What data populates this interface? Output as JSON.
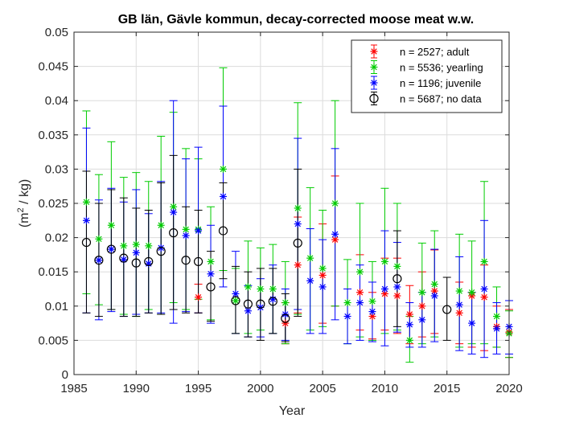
{
  "chart_data": {
    "type": "scatter",
    "title": "GB län, Gävle kommun, decay-corrected moose meat w.w.",
    "xlabel": "Year",
    "ylabel_main": "(m",
    "ylabel_sup": "2",
    "ylabel_rest": " / kg)",
    "xlim": [
      1985,
      2020
    ],
    "ylim": [
      0,
      0.05
    ],
    "xticks": [
      1985,
      1990,
      1995,
      2000,
      2005,
      2010,
      2015,
      2020
    ],
    "xtick_labels": [
      "1985",
      "1990",
      "1995",
      "2000",
      "2005",
      "2010",
      "2015",
      "2020"
    ],
    "yticks": [
      0,
      0.005,
      0.01,
      0.015,
      0.02,
      0.025,
      0.03,
      0.035,
      0.04,
      0.045,
      0.05
    ],
    "ytick_labels": [
      "0",
      "0.005",
      "0.01",
      "0.015",
      "0.02",
      "0.025",
      "0.03",
      "0.035",
      "0.04",
      "0.045",
      "0.05"
    ],
    "grid": true,
    "legend_position": "top-right",
    "series": [
      {
        "name": "n = 2527; adult",
        "color": "#ff0000",
        "marker": "star",
        "points": [
          {
            "x": 1995,
            "y": 0.0113,
            "lo": 0.009,
            "hi": 0.0132
          },
          {
            "x": 2002,
            "y": 0.0075,
            "lo": 0.0045,
            "hi": 0.0105
          },
          {
            "x": 2003,
            "y": 0.016,
            "lo": 0.009,
            "hi": 0.023
          },
          {
            "x": 2005,
            "y": 0.0145,
            "lo": 0.0075,
            "hi": 0.022
          },
          {
            "x": 2006,
            "y": 0.0197,
            "lo": 0.01,
            "hi": 0.029
          },
          {
            "x": 2008,
            "y": 0.012,
            "lo": 0.0065,
            "hi": 0.0175
          },
          {
            "x": 2009,
            "y": 0.0085,
            "lo": 0.0052,
            "hi": 0.012
          },
          {
            "x": 2010,
            "y": 0.0118,
            "lo": 0.0065,
            "hi": 0.017
          },
          {
            "x": 2011,
            "y": 0.0115,
            "lo": 0.006,
            "hi": 0.017
          },
          {
            "x": 2012,
            "y": 0.0088,
            "lo": 0.0045,
            "hi": 0.013
          },
          {
            "x": 2013,
            "y": 0.01,
            "lo": 0.0055,
            "hi": 0.015
          },
          {
            "x": 2014,
            "y": 0.0122,
            "lo": 0.006,
            "hi": 0.0182
          },
          {
            "x": 2016,
            "y": 0.009,
            "lo": 0.0045,
            "hi": 0.0135
          },
          {
            "x": 2017,
            "y": 0.0115,
            "lo": 0.004,
            "hi": 0.012
          },
          {
            "x": 2018,
            "y": 0.0113,
            "lo": 0.0035,
            "hi": 0.016
          },
          {
            "x": 2019,
            "y": 0.007,
            "lo": 0.004,
            "hi": 0.01
          },
          {
            "x": 2020,
            "y": 0.0062,
            "lo": 0.0025,
            "hi": 0.0095
          }
        ]
      },
      {
        "name": "n = 5536; yearling",
        "color": "#00cc00",
        "marker": "star",
        "points": [
          {
            "x": 1986,
            "y": 0.0252,
            "lo": 0.0118,
            "hi": 0.0385
          },
          {
            "x": 1987,
            "y": 0.0198,
            "lo": 0.0102,
            "hi": 0.0292
          },
          {
            "x": 1988,
            "y": 0.0218,
            "lo": 0.0095,
            "hi": 0.034
          },
          {
            "x": 1989,
            "y": 0.0188,
            "lo": 0.0088,
            "hi": 0.0288
          },
          {
            "x": 1990,
            "y": 0.019,
            "lo": 0.0085,
            "hi": 0.0295
          },
          {
            "x": 1991,
            "y": 0.0188,
            "lo": 0.0095,
            "hi": 0.0282
          },
          {
            "x": 1992,
            "y": 0.0218,
            "lo": 0.0088,
            "hi": 0.0348
          },
          {
            "x": 1993,
            "y": 0.0245,
            "lo": 0.0105,
            "hi": 0.0383
          },
          {
            "x": 1994,
            "y": 0.0212,
            "lo": 0.0095,
            "hi": 0.033
          },
          {
            "x": 1995,
            "y": 0.0212,
            "lo": 0.011,
            "hi": 0.0315
          },
          {
            "x": 1996,
            "y": 0.0165,
            "lo": 0.008,
            "hi": 0.0245
          },
          {
            "x": 1997,
            "y": 0.03,
            "lo": 0.0152,
            "hi": 0.0448
          },
          {
            "x": 1998,
            "y": 0.0108,
            "lo": 0.006,
            "hi": 0.0155
          },
          {
            "x": 1999,
            "y": 0.0128,
            "lo": 0.006,
            "hi": 0.0195
          },
          {
            "x": 2000,
            "y": 0.0125,
            "lo": 0.0065,
            "hi": 0.0185
          },
          {
            "x": 2001,
            "y": 0.0125,
            "lo": 0.006,
            "hi": 0.019
          },
          {
            "x": 2002,
            "y": 0.0105,
            "lo": 0.0045,
            "hi": 0.0165
          },
          {
            "x": 2003,
            "y": 0.0243,
            "lo": 0.0088,
            "hi": 0.0397
          },
          {
            "x": 2004,
            "y": 0.017,
            "lo": 0.0065,
            "hi": 0.0273
          },
          {
            "x": 2005,
            "y": 0.0155,
            "lo": 0.007,
            "hi": 0.024
          },
          {
            "x": 2006,
            "y": 0.025,
            "lo": 0.01,
            "hi": 0.04
          },
          {
            "x": 2007,
            "y": 0.0105,
            "lo": 0.0045,
            "hi": 0.0168
          },
          {
            "x": 2008,
            "y": 0.015,
            "lo": 0.0055,
            "hi": 0.025
          },
          {
            "x": 2009,
            "y": 0.0107,
            "lo": 0.005,
            "hi": 0.0165
          },
          {
            "x": 2010,
            "y": 0.0165,
            "lo": 0.006,
            "hi": 0.0272
          },
          {
            "x": 2011,
            "y": 0.0158,
            "lo": 0.0065,
            "hi": 0.025
          },
          {
            "x": 2012,
            "y": 0.005,
            "lo": 0.0018,
            "hi": 0.0085
          },
          {
            "x": 2013,
            "y": 0.012,
            "lo": 0.0045,
            "hi": 0.0192
          },
          {
            "x": 2014,
            "y": 0.0132,
            "lo": 0.0055,
            "hi": 0.021
          },
          {
            "x": 2016,
            "y": 0.0122,
            "lo": 0.004,
            "hi": 0.0205
          },
          {
            "x": 2017,
            "y": 0.012,
            "lo": 0.0045,
            "hi": 0.0195
          },
          {
            "x": 2018,
            "y": 0.0165,
            "lo": 0.0045,
            "hi": 0.0282
          },
          {
            "x": 2019,
            "y": 0.0085,
            "lo": 0.004,
            "hi": 0.0128
          },
          {
            "x": 2020,
            "y": 0.006,
            "lo": 0.0025,
            "hi": 0.0093
          }
        ]
      },
      {
        "name": "n = 1196; juvenile",
        "color": "#0000ff",
        "marker": "star",
        "points": [
          {
            "x": 1986,
            "y": 0.0225,
            "lo": 0.009,
            "hi": 0.036
          },
          {
            "x": 1987,
            "y": 0.0167,
            "lo": 0.008,
            "hi": 0.0255
          },
          {
            "x": 1988,
            "y": 0.0183,
            "lo": 0.0092,
            "hi": 0.0272
          },
          {
            "x": 1989,
            "y": 0.0168,
            "lo": 0.0085,
            "hi": 0.0252
          },
          {
            "x": 1990,
            "y": 0.0178,
            "lo": 0.0088,
            "hi": 0.027
          },
          {
            "x": 1991,
            "y": 0.0162,
            "lo": 0.009,
            "hi": 0.0235
          },
          {
            "x": 1992,
            "y": 0.0185,
            "lo": 0.009,
            "hi": 0.0282
          },
          {
            "x": 1993,
            "y": 0.0237,
            "lo": 0.0075,
            "hi": 0.04
          },
          {
            "x": 1994,
            "y": 0.0203,
            "lo": 0.0092,
            "hi": 0.0315
          },
          {
            "x": 1995,
            "y": 0.021,
            "lo": 0.009,
            "hi": 0.0332
          },
          {
            "x": 1996,
            "y": 0.0147,
            "lo": 0.0075,
            "hi": 0.0218
          },
          {
            "x": 1997,
            "y": 0.026,
            "lo": 0.0128,
            "hi": 0.0392
          },
          {
            "x": 1998,
            "y": 0.0118,
            "lo": 0.006,
            "hi": 0.018
          },
          {
            "x": 1999,
            "y": 0.0093,
            "lo": 0.0055,
            "hi": 0.013
          },
          {
            "x": 2000,
            "y": 0.0098,
            "lo": 0.0055,
            "hi": 0.014
          },
          {
            "x": 2001,
            "y": 0.011,
            "lo": 0.006,
            "hi": 0.016
          },
          {
            "x": 2002,
            "y": 0.0088,
            "lo": 0.005,
            "hi": 0.0125
          },
          {
            "x": 2003,
            "y": 0.022,
            "lo": 0.0095,
            "hi": 0.0345
          },
          {
            "x": 2004,
            "y": 0.0137,
            "lo": 0.006,
            "hi": 0.0213
          },
          {
            "x": 2005,
            "y": 0.0128,
            "lo": 0.006,
            "hi": 0.0197
          },
          {
            "x": 2006,
            "y": 0.0205,
            "lo": 0.008,
            "hi": 0.033
          },
          {
            "x": 2007,
            "y": 0.0085,
            "lo": 0.0045,
            "hi": 0.0125
          },
          {
            "x": 2008,
            "y": 0.0105,
            "lo": 0.005,
            "hi": 0.016
          },
          {
            "x": 2009,
            "y": 0.0092,
            "lo": 0.0048,
            "hi": 0.0135
          },
          {
            "x": 2010,
            "y": 0.0125,
            "lo": 0.0042,
            "hi": 0.021
          },
          {
            "x": 2011,
            "y": 0.0128,
            "lo": 0.0062,
            "hi": 0.0193
          },
          {
            "x": 2012,
            "y": 0.0073,
            "lo": 0.004,
            "hi": 0.0105
          },
          {
            "x": 2013,
            "y": 0.008,
            "lo": 0.004,
            "hi": 0.012
          },
          {
            "x": 2014,
            "y": 0.0115,
            "lo": 0.0048,
            "hi": 0.0183
          },
          {
            "x": 2016,
            "y": 0.0102,
            "lo": 0.0035,
            "hi": 0.0172
          },
          {
            "x": 2017,
            "y": 0.0075,
            "lo": 0.003,
            "hi": 0.012
          },
          {
            "x": 2018,
            "y": 0.0125,
            "lo": 0.0025,
            "hi": 0.0225
          },
          {
            "x": 2019,
            "y": 0.0067,
            "lo": 0.003,
            "hi": 0.0105
          },
          {
            "x": 2020,
            "y": 0.007,
            "lo": 0.003,
            "hi": 0.0108
          }
        ]
      },
      {
        "name": "n = 5687; no data",
        "color": "#000000",
        "marker": "circle",
        "points": [
          {
            "x": 1986,
            "y": 0.0193,
            "lo": 0.009,
            "hi": 0.0297
          },
          {
            "x": 1987,
            "y": 0.0167,
            "lo": 0.0085,
            "hi": 0.025
          },
          {
            "x": 1988,
            "y": 0.0183,
            "lo": 0.0095,
            "hi": 0.027
          },
          {
            "x": 1989,
            "y": 0.017,
            "lo": 0.0085,
            "hi": 0.0258
          },
          {
            "x": 1990,
            "y": 0.0163,
            "lo": 0.0085,
            "hi": 0.0243
          },
          {
            "x": 1991,
            "y": 0.0165,
            "lo": 0.009,
            "hi": 0.024
          },
          {
            "x": 1992,
            "y": 0.018,
            "lo": 0.0088,
            "hi": 0.028
          },
          {
            "x": 1993,
            "y": 0.0207,
            "lo": 0.0095,
            "hi": 0.032
          },
          {
            "x": 1994,
            "y": 0.0167,
            "lo": 0.009,
            "hi": 0.0245
          },
          {
            "x": 1995,
            "y": 0.0165,
            "lo": 0.009,
            "hi": 0.024
          },
          {
            "x": 1996,
            "y": 0.0128,
            "lo": 0.0078,
            "hi": 0.018
          },
          {
            "x": 1997,
            "y": 0.021,
            "lo": 0.014,
            "hi": 0.028
          },
          {
            "x": 1998,
            "y": 0.0108,
            "lo": 0.006,
            "hi": 0.0158
          },
          {
            "x": 1999,
            "y": 0.0103,
            "lo": 0.0055,
            "hi": 0.015
          },
          {
            "x": 2000,
            "y": 0.0103,
            "lo": 0.005,
            "hi": 0.0155
          },
          {
            "x": 2001,
            "y": 0.0107,
            "lo": 0.006,
            "hi": 0.0155
          },
          {
            "x": 2002,
            "y": 0.0082,
            "lo": 0.0048,
            "hi": 0.0118
          },
          {
            "x": 2003,
            "y": 0.0192,
            "lo": 0.0085,
            "hi": 0.03
          },
          {
            "x": 2011,
            "y": 0.014,
            "lo": 0.007,
            "hi": 0.021
          },
          {
            "x": 2015,
            "y": 0.0095,
            "lo": 0.005,
            "hi": 0.0142
          }
        ]
      }
    ]
  }
}
